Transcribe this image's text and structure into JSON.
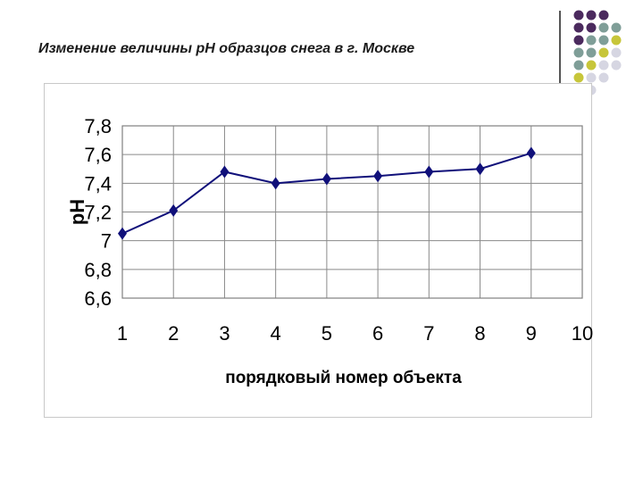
{
  "slide": {
    "title": "Изменение величины pH образцов снега в г. Москве"
  },
  "decor": {
    "dot_colors": [
      "#4b2a5e",
      "#7f9e98",
      "#c7c63a",
      "#d6d6e2"
    ]
  },
  "chart_data": {
    "type": "line",
    "title": "",
    "xlabel": "порядковый номер объекта",
    "ylabel": "pH",
    "x": [
      1,
      2,
      3,
      4,
      5,
      6,
      7,
      8,
      9
    ],
    "xticks": [
      "1",
      "2",
      "3",
      "4",
      "5",
      "6",
      "7",
      "8",
      "9",
      "10"
    ],
    "yticks": [
      "6,6",
      "6,8",
      "7",
      "7,2",
      "7,4",
      "7,6",
      "7,8"
    ],
    "ylim": [
      6.6,
      7.8
    ],
    "xlim": [
      1,
      10
    ],
    "grid": true,
    "legend": "none",
    "series": [
      {
        "values": [
          7.05,
          7.21,
          7.48,
          7.4,
          7.43,
          7.45,
          7.48,
          7.5,
          7.61
        ],
        "color": "#10107a",
        "marker": "diamond"
      }
    ]
  }
}
